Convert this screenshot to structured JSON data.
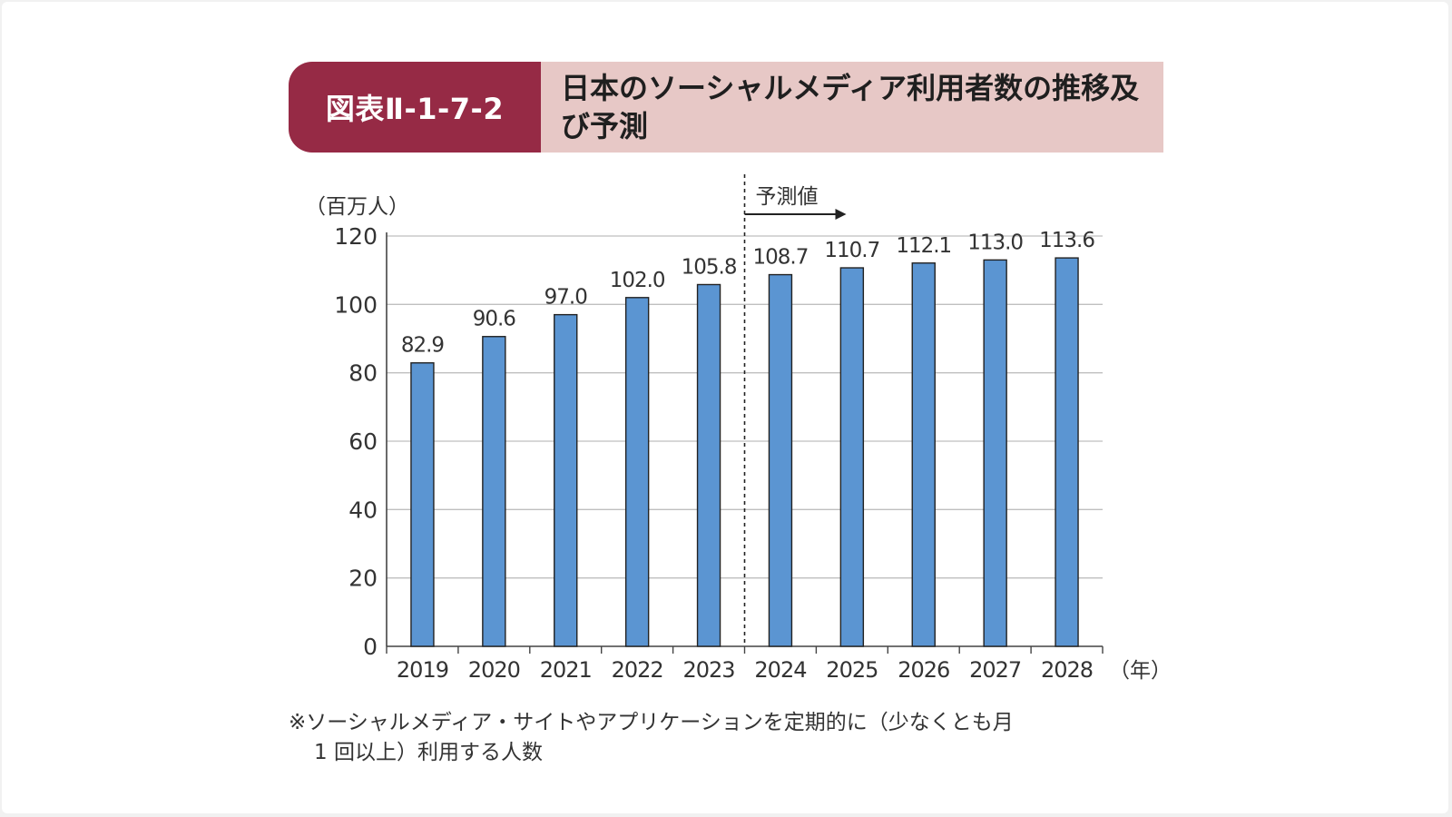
{
  "header": {
    "badge": "図表Ⅱ-1-7-2",
    "title": "日本のソーシャルメディア利用者数の推移及び予測"
  },
  "note": {
    "line1": "※ソーシャルメディア・サイトやアプリケーションを定期的に（少なくとも月",
    "line2": "1 回以上）利用する人数"
  },
  "chart_data": {
    "type": "bar",
    "categories": [
      "2019",
      "2020",
      "2021",
      "2022",
      "2023",
      "2024",
      "2025",
      "2026",
      "2027",
      "2028"
    ],
    "values": [
      82.9,
      90.6,
      97.0,
      102.0,
      105.8,
      108.7,
      110.7,
      112.1,
      113.0,
      113.6
    ],
    "value_labels": [
      "82.9",
      "90.6",
      "97.0",
      "102.0",
      "105.8",
      "108.7",
      "110.7",
      "112.1",
      "113.0",
      "113.6"
    ],
    "ylabel": "（百万人）",
    "xunit": "（年）",
    "ylim": [
      0,
      120
    ],
    "yticks": [
      0,
      20,
      40,
      60,
      80,
      100,
      120
    ],
    "grid": true,
    "forecast_label": "予測値",
    "forecast_start_category": "2024",
    "colors": {
      "bar": "#5b95d2",
      "bar_border": "#222222",
      "grid": "#bfbfbf",
      "axis": "#444444"
    }
  }
}
